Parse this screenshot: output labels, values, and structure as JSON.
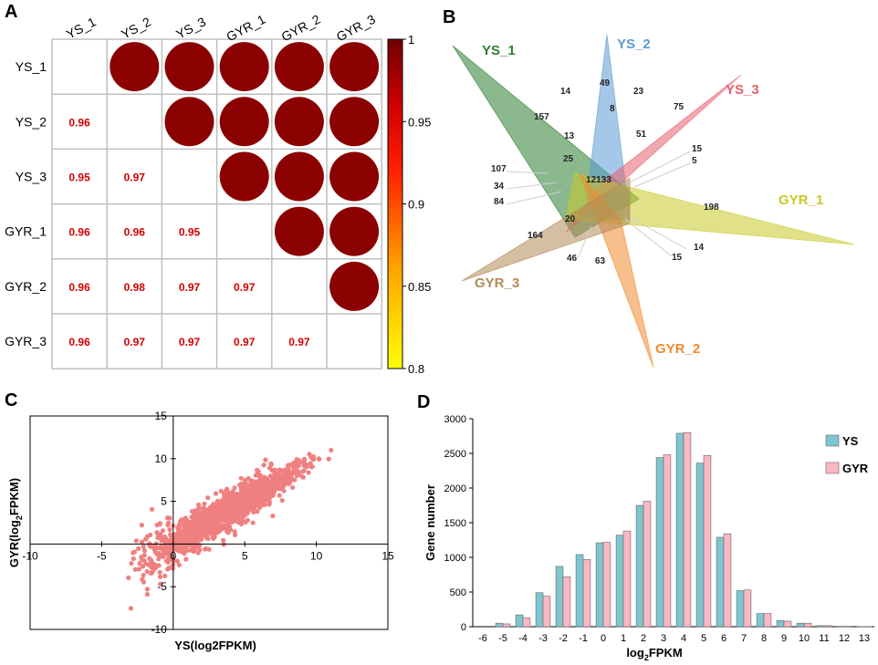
{
  "panels": {
    "a": "A",
    "b": "B",
    "c": "C",
    "d": "D"
  },
  "colors": {
    "circle": "#8b0000",
    "corr_text": "#d40000",
    "grid": "#bfbfbf",
    "scatter": "#f08080",
    "ys_bar": "#7ec6cf",
    "gyr_bar": "#f9b8c4"
  },
  "chart_data": [
    {
      "id": "correlation_matrix",
      "type": "heatmap",
      "labels": [
        "YS_1",
        "YS_2",
        "YS_3",
        "GYR_1",
        "GYR_2",
        "GYR_3"
      ],
      "lower_values": [
        {
          "row": "YS_2",
          "col": "YS_1",
          "value": "0.96"
        },
        {
          "row": "YS_3",
          "col": "YS_1",
          "value": "0.95"
        },
        {
          "row": "YS_3",
          "col": "YS_2",
          "value": "0.97"
        },
        {
          "row": "GYR_1",
          "col": "YS_1",
          "value": "0.96"
        },
        {
          "row": "GYR_1",
          "col": "YS_2",
          "value": "0.96"
        },
        {
          "row": "GYR_1",
          "col": "YS_3",
          "value": "0.95"
        },
        {
          "row": "GYR_2",
          "col": "YS_1",
          "value": "0.96"
        },
        {
          "row": "GYR_2",
          "col": "YS_2",
          "value": "0.98"
        },
        {
          "row": "GYR_2",
          "col": "YS_3",
          "value": "0.97"
        },
        {
          "row": "GYR_2",
          "col": "GYR_1",
          "value": "0.97"
        },
        {
          "row": "GYR_3",
          "col": "YS_1",
          "value": "0.96"
        },
        {
          "row": "GYR_3",
          "col": "YS_2",
          "value": "0.97"
        },
        {
          "row": "GYR_3",
          "col": "YS_3",
          "value": "0.97"
        },
        {
          "row": "GYR_3",
          "col": "GYR_1",
          "value": "0.97"
        },
        {
          "row": "GYR_3",
          "col": "GYR_2",
          "value": "0.97"
        }
      ],
      "upper": "circles (value near 1)",
      "colorbar": {
        "range": [
          0.8,
          1
        ],
        "ticks": [
          "1",
          "0.95",
          "0.9",
          "0.85",
          "0.8"
        ]
      }
    },
    {
      "id": "venn",
      "type": "venn",
      "sets": [
        {
          "name": "YS_1",
          "color": "#2e7d32"
        },
        {
          "name": "YS_2",
          "color": "#5b9bd5"
        },
        {
          "name": "YS_3",
          "color": "#e8606d"
        },
        {
          "name": "GYR_1",
          "color": "#c9c92a"
        },
        {
          "name": "GYR_2",
          "color": "#f08a2c"
        },
        {
          "name": "GYR_3",
          "color": "#b08a55"
        }
      ],
      "numbers": [
        "14",
        "49",
        "23",
        "157",
        "8",
        "75",
        "13",
        "51",
        "15",
        "5",
        "25",
        "107",
        "12133",
        "34",
        "84",
        "198",
        "20",
        "164",
        "14",
        "46",
        "15",
        "63"
      ]
    },
    {
      "id": "scatter",
      "type": "scatter",
      "xlabel": "YS(log2FPKM)",
      "ylabel_main": "GYR(log",
      "ylabel_sub": "2",
      "ylabel_end": "FPKM)",
      "xlim": [
        -10,
        15
      ],
      "ylim": [
        -10,
        15
      ],
      "xticks": [
        "-10",
        "-5",
        "0",
        "5",
        "10",
        "15"
      ],
      "yticks": [
        "15",
        "10",
        "5",
        "-5",
        "-10"
      ],
      "trend": {
        "slope": 1.0,
        "intercept": 0.0,
        "x_range": [
          -6.5,
          12.8
        ],
        "spread": 1.2
      }
    },
    {
      "id": "histogram",
      "type": "bar",
      "categories": [
        "-6",
        "-5",
        "-4",
        "-3",
        "-2",
        "-1",
        "0",
        "1",
        "2",
        "3",
        "4",
        "5",
        "6",
        "7",
        "8",
        "9",
        "10",
        "11",
        "12",
        "13"
      ],
      "series": [
        {
          "name": "YS",
          "values": [
            0,
            50,
            170,
            490,
            870,
            1040,
            1210,
            1320,
            1750,
            2440,
            2790,
            2360,
            1290,
            520,
            190,
            90,
            50,
            15,
            5,
            2
          ]
        },
        {
          "name": "GYR",
          "values": [
            0,
            40,
            130,
            440,
            720,
            970,
            1215,
            1380,
            1810,
            2480,
            2800,
            2470,
            1340,
            530,
            190,
            80,
            50,
            15,
            5,
            2
          ]
        }
      ],
      "xlabel_main": "log",
      "xlabel_sub": "2",
      "xlabel_end": "FPKM",
      "ylabel": "Gene number",
      "ylim": [
        0,
        3000
      ],
      "yticks": [
        "0",
        "500",
        "1000",
        "1500",
        "2000",
        "2500",
        "3000"
      ]
    }
  ]
}
